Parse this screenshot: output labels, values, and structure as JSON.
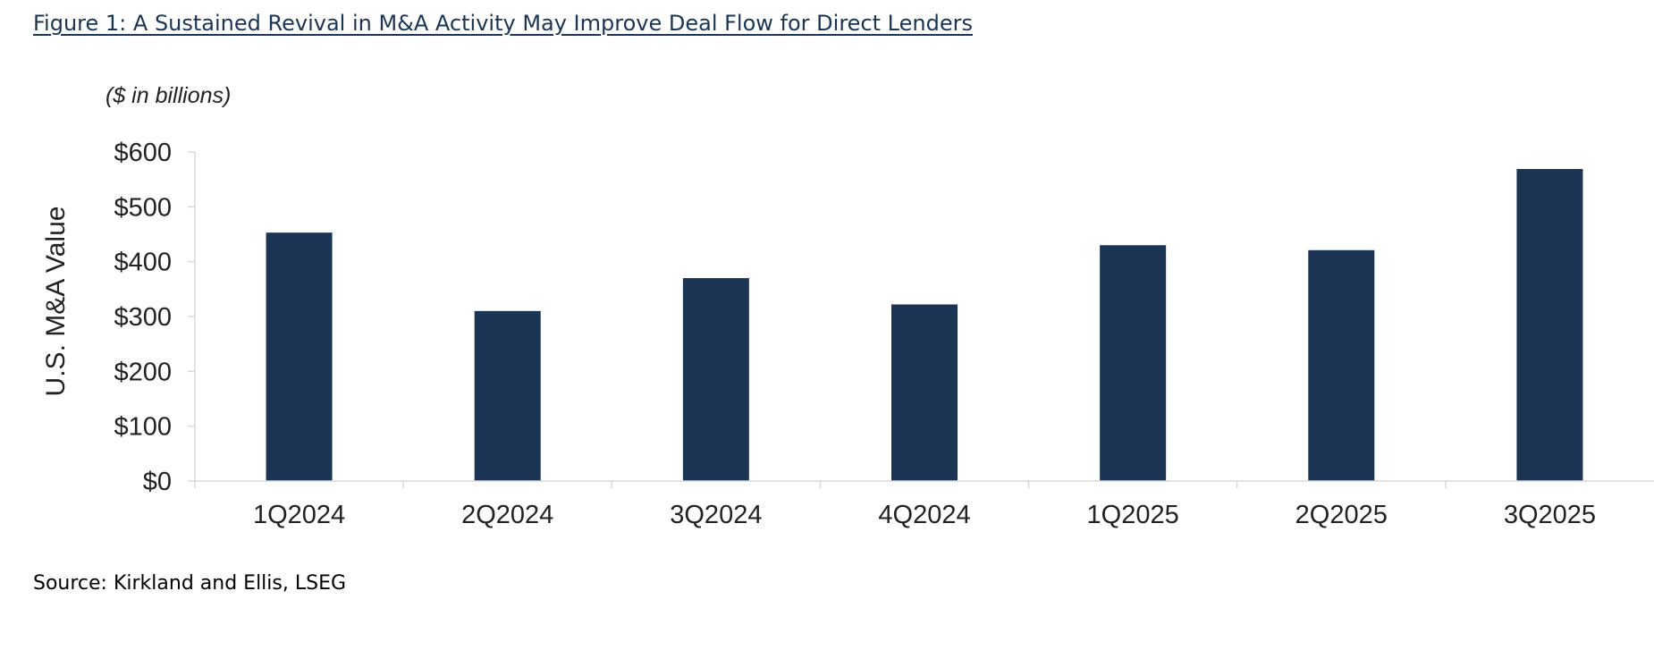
{
  "figure": {
    "title": "Figure 1: A Sustained Revival in M&A Activity May Improve Deal Flow for Direct Lenders",
    "source": "Source: Kirkland and Ellis, LSEG"
  },
  "chart_data": {
    "type": "bar",
    "subtitle": "($ in billions)",
    "ylabel": "U.S. M&A Value",
    "xlabel": "",
    "categories": [
      "1Q2024",
      "2Q2024",
      "3Q2024",
      "4Q2024",
      "1Q2025",
      "2Q2025",
      "3Q2025"
    ],
    "values": [
      453,
      310,
      370,
      322,
      430,
      421,
      569
    ],
    "ylim": [
      0,
      600
    ],
    "yticks": [
      0,
      100,
      200,
      300,
      400,
      500,
      600
    ],
    "ytick_labels": [
      "$0",
      "$100",
      "$200",
      "$300",
      "$400",
      "$500",
      "$600"
    ],
    "bar_color": "#1b3454",
    "grid": false,
    "legend": "none"
  }
}
